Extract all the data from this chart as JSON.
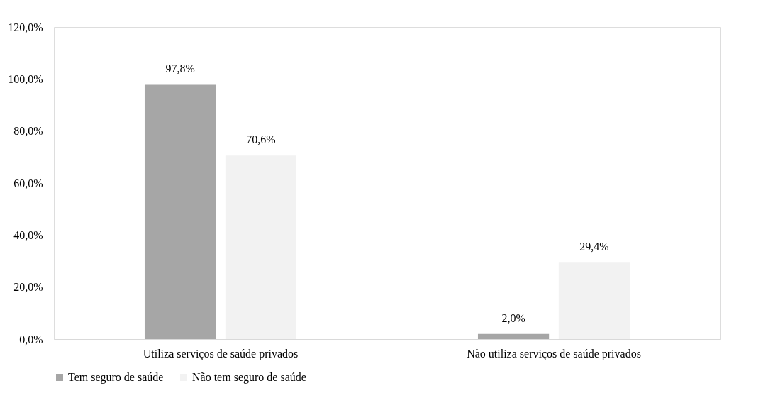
{
  "chart_data": {
    "type": "bar",
    "categories": [
      "Utiliza serviços de saúde privados",
      "Não utiliza serviços de saúde privados"
    ],
    "series": [
      {
        "name": "Tem seguro de saúde",
        "color": "#a6a6a6",
        "values": [
          97.8,
          2.0
        ],
        "value_labels": [
          "97,8%",
          "2,0%"
        ]
      },
      {
        "name": "Não tem seguro de saúde",
        "color": "#f2f2f2",
        "values": [
          70.6,
          29.4
        ],
        "value_labels": [
          "70,6%",
          "29,4%"
        ]
      }
    ],
    "ylim": [
      0,
      120
    ],
    "yticks": [
      {
        "value": 0,
        "label": "0,0%"
      },
      {
        "value": 20,
        "label": "20,0%"
      },
      {
        "value": 40,
        "label": "40,0%"
      },
      {
        "value": 60,
        "label": "60,0%"
      },
      {
        "value": 80,
        "label": "80,0%"
      },
      {
        "value": 100,
        "label": "100,0%"
      },
      {
        "value": 120,
        "label": "120,0%"
      }
    ],
    "grid": false,
    "legend": "bottom"
  }
}
